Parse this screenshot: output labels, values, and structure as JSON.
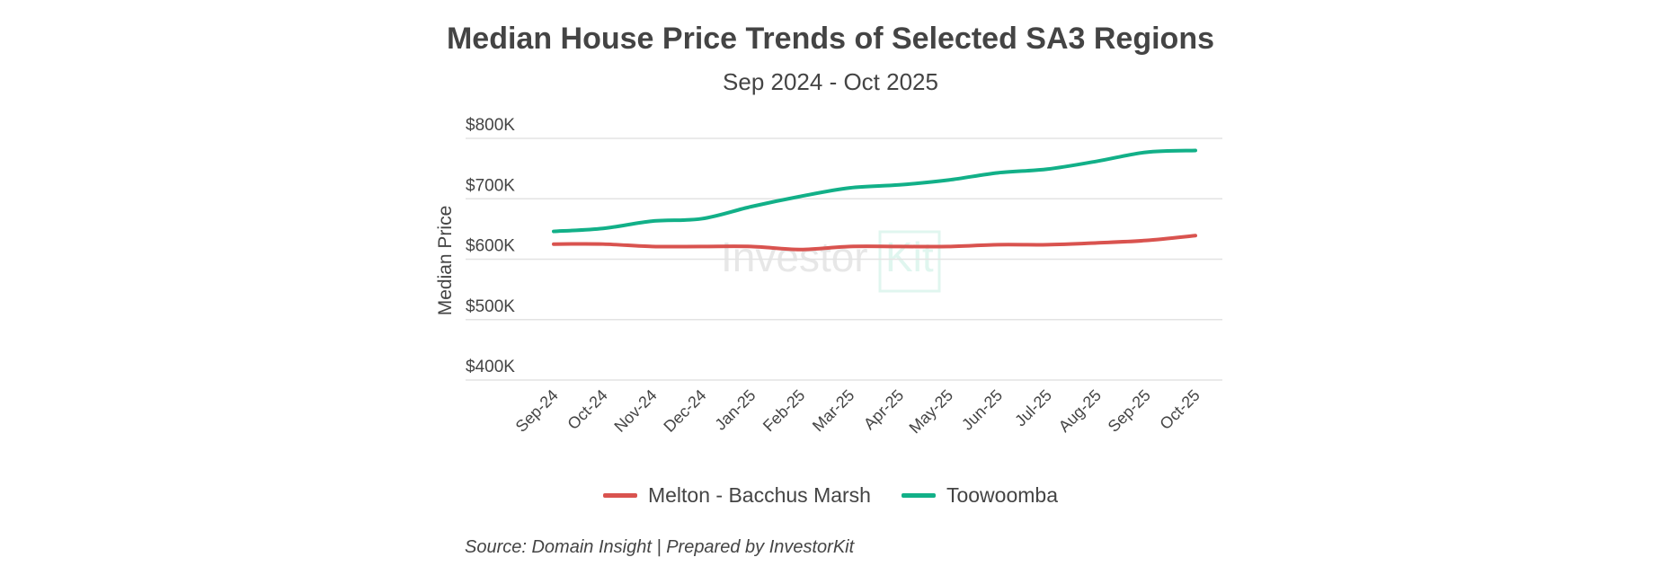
{
  "chart_data": {
    "type": "line",
    "title": "Median House Price Trends of Selected SA3 Regions",
    "subtitle": "Sep 2024 - Oct 2025",
    "xlabel": "",
    "ylabel": "Median Price",
    "categories": [
      "Sep-24",
      "Oct-24",
      "Nov-24",
      "Dec-24",
      "Jan-25",
      "Feb-25",
      "Mar-25",
      "Apr-25",
      "May-25",
      "Jun-25",
      "Jul-25",
      "Aug-25",
      "Sep-25",
      "Oct-25"
    ],
    "ylim": [
      400000,
      800000
    ],
    "yticks": [
      400000,
      500000,
      600000,
      700000,
      800000
    ],
    "ytick_labels": [
      "$400K",
      "$500K",
      "$600K",
      "$700K",
      "$800K"
    ],
    "grid": true,
    "legend_position": "bottom",
    "series": [
      {
        "name": "Melton - Bacchus Marsh",
        "color": "#d9534f",
        "values": [
          625000,
          625000,
          621000,
          621000,
          621000,
          616000,
          621000,
          621000,
          621000,
          624000,
          624000,
          627000,
          631000,
          639000
        ]
      },
      {
        "name": "Toowoomba",
        "color": "#12b088",
        "values": [
          646000,
          651000,
          663000,
          667000,
          687000,
          704000,
          718000,
          723000,
          731000,
          743000,
          749000,
          762000,
          777000,
          780000
        ]
      }
    ],
    "watermark": "InvestorKit",
    "source": "Source: Domain Insight | Prepared by InvestorKit"
  }
}
